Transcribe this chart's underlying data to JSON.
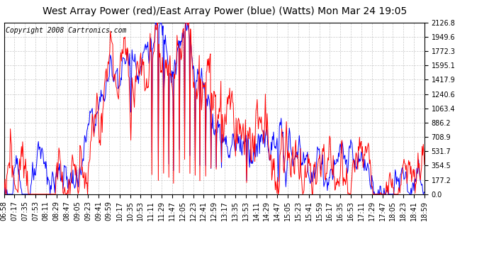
{
  "title": "West Array Power (red)/East Array Power (blue) (Watts) Mon Mar 24 19:05",
  "copyright": "Copyright 2008 Cartronics.com",
  "ylabel_right_ticks": [
    0.0,
    177.2,
    354.5,
    531.7,
    708.9,
    886.2,
    1063.4,
    1240.6,
    1417.9,
    1595.1,
    1772.3,
    1949.6,
    2126.8
  ],
  "ymax": 2126.8,
  "ymin": 0.0,
  "bg_color": "#ffffff",
  "plot_bg_color": "#ffffff",
  "grid_color": "#bbbbbb",
  "red_color": "#ff0000",
  "blue_color": "#0000ff",
  "title_fontsize": 10,
  "tick_label_fontsize": 7,
  "copyright_fontsize": 7,
  "xtick_labels": [
    "06:58",
    "07:17",
    "07:35",
    "07:53",
    "08:11",
    "08:29",
    "08:47",
    "09:05",
    "09:23",
    "09:41",
    "09:59",
    "10:17",
    "10:35",
    "10:53",
    "11:11",
    "11:29",
    "11:47",
    "12:05",
    "12:23",
    "12:41",
    "12:59",
    "13:17",
    "13:35",
    "13:53",
    "14:11",
    "14:29",
    "14:47",
    "15:05",
    "15:23",
    "15:41",
    "15:59",
    "16:17",
    "16:35",
    "16:53",
    "17:11",
    "17:29",
    "17:47",
    "18:05",
    "18:23",
    "18:41",
    "18:59"
  ]
}
